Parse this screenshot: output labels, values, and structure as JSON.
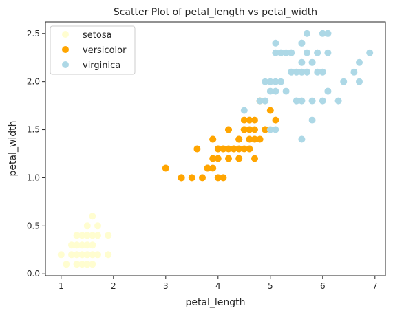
{
  "chart_data": {
    "type": "scatter",
    "title": "Scatter Plot of petal_length vs petal_width",
    "xlabel": "petal_length",
    "ylabel": "petal_width",
    "xlim": [
      0.7,
      7.2
    ],
    "ylim": [
      -0.02,
      2.62
    ],
    "xticks": [
      1,
      2,
      3,
      4,
      5,
      6,
      7
    ],
    "yticks": [
      0.0,
      0.5,
      1.0,
      1.5,
      2.0,
      2.5
    ],
    "xtick_labels": [
      "1",
      "2",
      "3",
      "4",
      "5",
      "6",
      "7"
    ],
    "ytick_labels": [
      "0.0",
      "0.5",
      "1.0",
      "1.5",
      "2.0",
      "2.5"
    ],
    "grid": false,
    "legend_position": "top-left",
    "series": [
      {
        "name": "setosa",
        "color": "#fffdd0",
        "points": [
          [
            1.4,
            0.2
          ],
          [
            1.3,
            0.2
          ],
          [
            1.5,
            0.2
          ],
          [
            1.7,
            0.4
          ],
          [
            1.4,
            0.3
          ],
          [
            1.5,
            0.1
          ],
          [
            1.6,
            0.2
          ],
          [
            1.1,
            0.1
          ],
          [
            1.2,
            0.2
          ],
          [
            1.3,
            0.4
          ],
          [
            1.0,
            0.2
          ],
          [
            1.7,
            0.5
          ],
          [
            1.9,
            0.2
          ],
          [
            1.6,
            0.4
          ],
          [
            1.5,
            0.4
          ],
          [
            1.4,
            0.1
          ],
          [
            1.9,
            0.4
          ],
          [
            1.3,
            0.3
          ],
          [
            1.6,
            0.6
          ],
          [
            1.5,
            0.3
          ],
          [
            1.4,
            0.4
          ],
          [
            1.6,
            0.3
          ],
          [
            1.3,
            0.1
          ],
          [
            1.2,
            0.3
          ],
          [
            1.6,
            0.1
          ],
          [
            1.7,
            0.2
          ],
          [
            1.5,
            0.5
          ]
        ]
      },
      {
        "name": "versicolor",
        "color": "#ffa500",
        "points": [
          [
            4.7,
            1.4
          ],
          [
            4.5,
            1.5
          ],
          [
            4.9,
            1.5
          ],
          [
            4.0,
            1.3
          ],
          [
            4.6,
            1.5
          ],
          [
            3.3,
            1.0
          ],
          [
            4.6,
            1.3
          ],
          [
            3.9,
            1.4
          ],
          [
            3.5,
            1.0
          ],
          [
            4.2,
            1.5
          ],
          [
            4.0,
            1.0
          ],
          [
            4.7,
            1.4
          ],
          [
            3.6,
            1.3
          ],
          [
            4.4,
            1.4
          ],
          [
            4.5,
            1.5
          ],
          [
            4.1,
            1.0
          ],
          [
            4.5,
            1.5
          ],
          [
            3.9,
            1.1
          ],
          [
            4.8,
            1.8
          ],
          [
            4.9,
            1.5
          ],
          [
            4.7,
            1.2
          ],
          [
            4.3,
            1.3
          ],
          [
            4.4,
            1.4
          ],
          [
            4.8,
            1.4
          ],
          [
            5.0,
            1.7
          ],
          [
            3.8,
            1.1
          ],
          [
            3.7,
            1.0
          ],
          [
            3.9,
            1.2
          ],
          [
            5.1,
            1.6
          ],
          [
            4.5,
            1.6
          ],
          [
            4.7,
            1.5
          ],
          [
            4.4,
            1.3
          ],
          [
            4.1,
            1.3
          ],
          [
            4.0,
            1.3
          ],
          [
            4.4,
            1.2
          ],
          [
            4.6,
            1.4
          ],
          [
            4.0,
            1.2
          ],
          [
            3.3,
            1.0
          ],
          [
            4.2,
            1.3
          ],
          [
            4.2,
            1.2
          ],
          [
            4.3,
            1.3
          ],
          [
            3.0,
            1.1
          ],
          [
            4.1,
            1.3
          ],
          [
            3.8,
            1.1
          ],
          [
            4.5,
            1.3
          ],
          [
            4.9,
            1.5
          ],
          [
            4.6,
            1.6
          ],
          [
            4.2,
            1.5
          ],
          [
            4.7,
            1.6
          ],
          [
            3.9,
            1.4
          ]
        ]
      },
      {
        "name": "virginica",
        "color": "#add8e6",
        "points": [
          [
            6.0,
            2.5
          ],
          [
            5.1,
            1.9
          ],
          [
            5.9,
            2.1
          ],
          [
            5.6,
            1.8
          ],
          [
            5.8,
            2.2
          ],
          [
            6.6,
            2.1
          ],
          [
            4.5,
            1.7
          ],
          [
            6.3,
            1.8
          ],
          [
            5.8,
            1.8
          ],
          [
            6.1,
            2.5
          ],
          [
            5.1,
            2.0
          ],
          [
            5.3,
            1.9
          ],
          [
            5.5,
            2.1
          ],
          [
            5.0,
            2.0
          ],
          [
            5.1,
            2.4
          ],
          [
            5.3,
            2.3
          ],
          [
            5.5,
            1.8
          ],
          [
            6.7,
            2.2
          ],
          [
            6.9,
            2.3
          ],
          [
            5.0,
            1.5
          ],
          [
            5.7,
            2.3
          ],
          [
            4.9,
            2.0
          ],
          [
            6.7,
            2.0
          ],
          [
            4.9,
            1.8
          ],
          [
            5.7,
            2.1
          ],
          [
            6.0,
            1.8
          ],
          [
            4.8,
            1.8
          ],
          [
            5.6,
            2.1
          ],
          [
            5.8,
            1.6
          ],
          [
            6.1,
            1.9
          ],
          [
            6.4,
            2.0
          ],
          [
            5.6,
            2.2
          ],
          [
            5.1,
            1.5
          ],
          [
            5.6,
            1.4
          ],
          [
            6.1,
            2.3
          ],
          [
            5.6,
            2.4
          ],
          [
            5.5,
            1.8
          ],
          [
            5.4,
            2.1
          ],
          [
            5.6,
            2.4
          ],
          [
            5.1,
            2.3
          ],
          [
            5.9,
            2.3
          ],
          [
            5.7,
            2.5
          ],
          [
            5.2,
            2.3
          ],
          [
            5.2,
            2.0
          ],
          [
            5.4,
            2.3
          ],
          [
            6.1,
            1.9
          ],
          [
            5.9,
            2.3
          ],
          [
            6.0,
            2.1
          ],
          [
            5.3,
            2.3
          ],
          [
            6.1,
            2.5
          ],
          [
            5.8,
            2.2
          ],
          [
            5.2,
            2.3
          ],
          [
            5.0,
            1.9
          ],
          [
            5.4,
            2.3
          ]
        ]
      }
    ]
  }
}
